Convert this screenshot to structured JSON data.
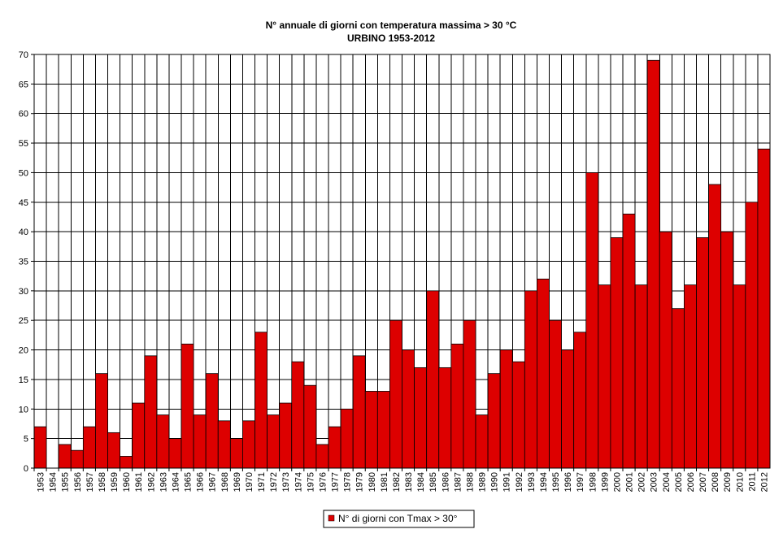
{
  "chart_data": {
    "type": "bar",
    "title": "N° annuale di giorni con temperatura massima > 30 °C",
    "subtitle": "URBINO 1953-2012",
    "xlabel": "",
    "ylabel": "",
    "ylim": [
      0,
      70
    ],
    "y_ticks": [
      0,
      5,
      10,
      15,
      20,
      25,
      30,
      35,
      40,
      45,
      50,
      55,
      60,
      65,
      70
    ],
    "grid": "vertical and horizontal",
    "legend_position": "bottom-center",
    "categories": [
      "1953",
      "1954",
      "1955",
      "1956",
      "1957",
      "1958",
      "1959",
      "1960",
      "1961",
      "1962",
      "1963",
      "1964",
      "1965",
      "1966",
      "1967",
      "1968",
      "1969",
      "1970",
      "1971",
      "1972",
      "1973",
      "1974",
      "1975",
      "1976",
      "1977",
      "1978",
      "1979",
      "1980",
      "1981",
      "1982",
      "1983",
      "1984",
      "1985",
      "1986",
      "1987",
      "1988",
      "1989",
      "1990",
      "1991",
      "1992",
      "1993",
      "1994",
      "1995",
      "1996",
      "1997",
      "1998",
      "1999",
      "2000",
      "2001",
      "2002",
      "2003",
      "2004",
      "2005",
      "2006",
      "2007",
      "2008",
      "2009",
      "2010",
      "2011",
      "2012"
    ],
    "series": [
      {
        "name": "N° di giorni con Tmax > 30°",
        "color": "#dd0000",
        "values": [
          7,
          0,
          4,
          3,
          7,
          16,
          6,
          2,
          11,
          19,
          9,
          5,
          21,
          9,
          16,
          8,
          5,
          8,
          23,
          9,
          11,
          18,
          14,
          4,
          7,
          10,
          19,
          13,
          13,
          25,
          20,
          17,
          30,
          17,
          21,
          25,
          9,
          16,
          20,
          18,
          30,
          32,
          25,
          20,
          23,
          50,
          31,
          39,
          43,
          31,
          69,
          40,
          27,
          31,
          39,
          48,
          40,
          31,
          45,
          54
        ]
      }
    ]
  }
}
